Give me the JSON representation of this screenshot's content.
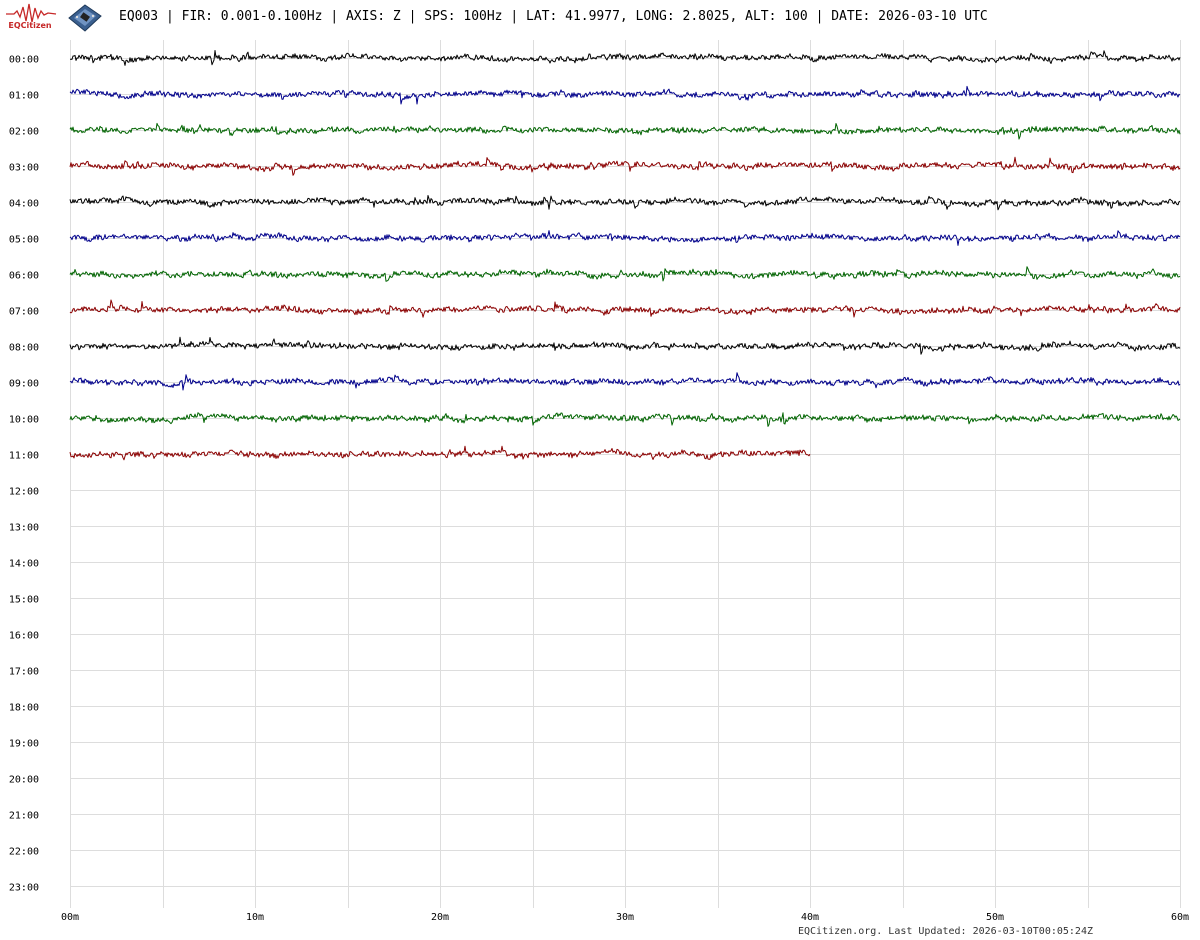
{
  "header": {
    "logo_text": "EQCitizen",
    "title": "EQ003 | FIR: 0.001-0.100Hz | AXIS: Z | SPS: 100Hz | LAT: 41.9977, LONG: 2.8025, ALT: 100 | DATE: 2026-03-10 UTC",
    "logo_icon": "seismograph-logo-icon",
    "device_icon": "sensor-board-icon"
  },
  "chart_data": {
    "type": "line",
    "title": "EQ003 | FIR: 0.001-0.100Hz | AXIS: Z | SPS: 100Hz | LAT: 41.9977, LONG: 2.8025, ALT: 100 | DATE: 2026-03-10 UTC",
    "y_tick_labels": [
      "00:00",
      "01:00",
      "02:00",
      "03:00",
      "04:00",
      "05:00",
      "06:00",
      "07:00",
      "08:00",
      "09:00",
      "10:00",
      "11:00",
      "12:00",
      "13:00",
      "14:00",
      "15:00",
      "16:00",
      "17:00",
      "18:00",
      "19:00",
      "20:00",
      "21:00",
      "22:00",
      "23:00"
    ],
    "x_tick_labels": [
      "00m",
      "10m",
      "20m",
      "30m",
      "40m",
      "50m",
      "60m"
    ],
    "xlim": [
      0,
      60
    ],
    "x_minor_step": 5,
    "grid": true,
    "trace_colors": [
      "#000000",
      "#00008b",
      "#006400",
      "#8b0000"
    ],
    "grid_color": "#dddddd",
    "traces": [
      {
        "hour": "00:00",
        "end_minute": 60
      },
      {
        "hour": "01:00",
        "end_minute": 60
      },
      {
        "hour": "02:00",
        "end_minute": 60
      },
      {
        "hour": "03:00",
        "end_minute": 60
      },
      {
        "hour": "04:00",
        "end_minute": 60
      },
      {
        "hour": "05:00",
        "end_minute": 60
      },
      {
        "hour": "06:00",
        "end_minute": 60
      },
      {
        "hour": "07:00",
        "end_minute": 60
      },
      {
        "hour": "08:00",
        "end_minute": 60
      },
      {
        "hour": "09:00",
        "end_minute": 60
      },
      {
        "hour": "10:00",
        "end_minute": 60
      },
      {
        "hour": "11:00",
        "end_minute": 40
      }
    ]
  },
  "footer": {
    "text": "EQCitizen.org. Last Updated: 2026-03-10T00:05:24Z"
  }
}
